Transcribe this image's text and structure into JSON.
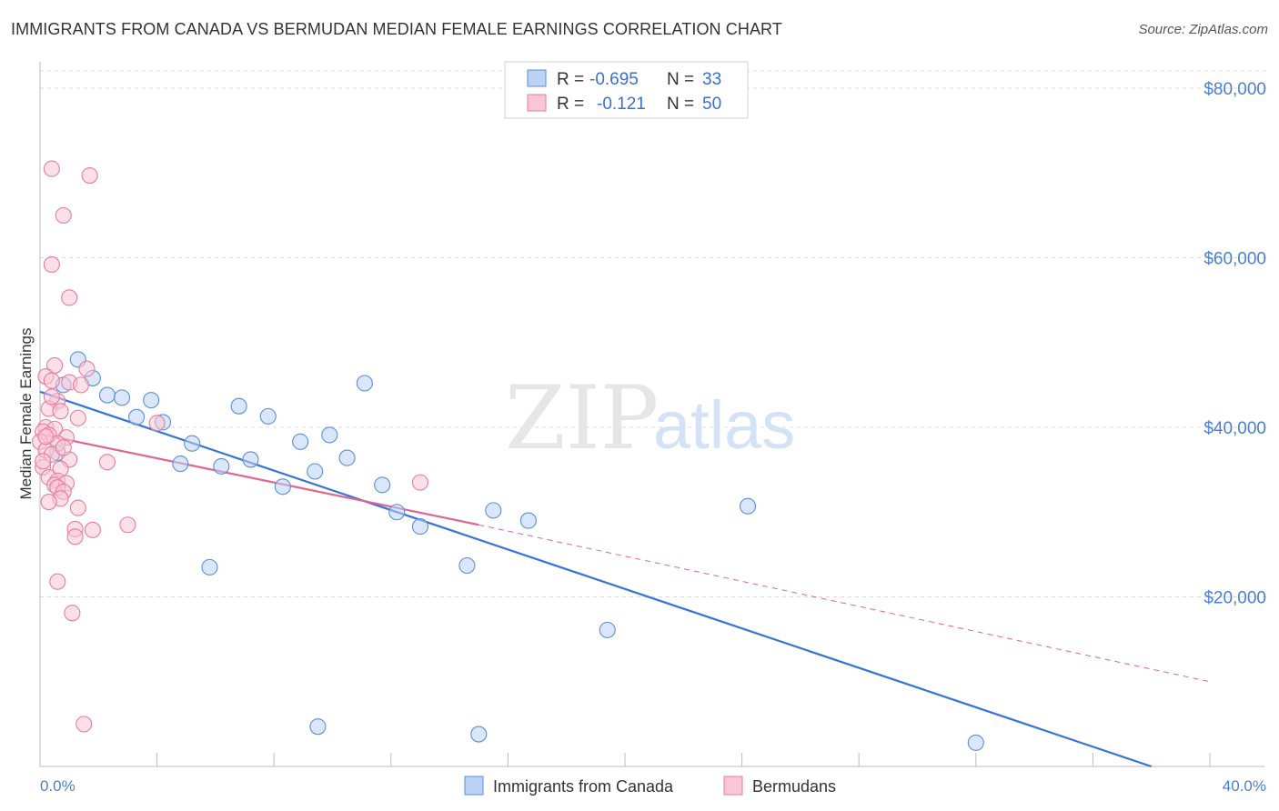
{
  "title": "IMMIGRANTS FROM CANADA VS BERMUDAN MEDIAN FEMALE EARNINGS CORRELATION CHART",
  "source": "Source: ZipAtlas.com",
  "watermark": {
    "zip": "ZIP",
    "atlas": "atlas"
  },
  "colors": {
    "blue": "#5b8fd8",
    "blue_fill": "#bcd2f4",
    "blue_line": "#3573d6",
    "pink": "#e87c9e",
    "pink_fill": "#f8c6d6",
    "pink_line": "#e06590",
    "grid": "#d8d8d8",
    "tick_text": "#4a7fd0"
  },
  "legend": {
    "rows": [
      {
        "r_label": "R =",
        "r_value": "-0.695",
        "n_label": "N =",
        "n_value": "33"
      },
      {
        "r_label": "R =",
        "r_value": "-0.121",
        "n_label": "N =",
        "n_value": "50"
      }
    ]
  },
  "chart_data": {
    "type": "scatter",
    "title": "IMMIGRANTS FROM CANADA VS BERMUDAN MEDIAN FEMALE EARNINGS CORRELATION CHART",
    "xlabel": "",
    "ylabel": "Median Female Earnings",
    "xlim": [
      0,
      40
    ],
    "ylim": [
      0,
      80000
    ],
    "x_tick_labels": [
      "0.0%",
      "40.0%"
    ],
    "y_ticks": [
      20000,
      40000,
      60000,
      80000
    ],
    "y_tick_labels": [
      "$20,000",
      "$40,000",
      "$60,000",
      "$80,000"
    ],
    "grid": true,
    "legend_position": "top-center",
    "series": [
      {
        "name": "Immigrants from Canada",
        "color": "blue",
        "points": [
          [
            0.6,
            37000
          ],
          [
            0.8,
            45000
          ],
          [
            1.3,
            48000
          ],
          [
            1.8,
            45800
          ],
          [
            2.3,
            43800
          ],
          [
            2.8,
            43500
          ],
          [
            3.3,
            41200
          ],
          [
            3.8,
            43200
          ],
          [
            4.2,
            40600
          ],
          [
            4.8,
            35700
          ],
          [
            5.2,
            38100
          ],
          [
            5.8,
            23500
          ],
          [
            6.2,
            35400
          ],
          [
            6.8,
            42500
          ],
          [
            7.2,
            36200
          ],
          [
            7.8,
            41300
          ],
          [
            8.3,
            33000
          ],
          [
            8.9,
            38300
          ],
          [
            9.4,
            34800
          ],
          [
            9.9,
            39100
          ],
          [
            10.5,
            36400
          ],
          [
            11.1,
            45200
          ],
          [
            11.7,
            33200
          ],
          [
            12.2,
            30000
          ],
          [
            13.0,
            28300
          ],
          [
            14.6,
            23700
          ],
          [
            15.5,
            30200
          ],
          [
            16.7,
            29000
          ],
          [
            19.4,
            16100
          ],
          [
            24.2,
            30700
          ],
          [
            9.5,
            4700
          ],
          [
            15.0,
            3800
          ],
          [
            32.0,
            2800
          ]
        ],
        "trend": {
          "x": [
            0,
            38
          ],
          "y": [
            44200,
            0
          ],
          "style": "solid"
        }
      },
      {
        "name": "Bermudans",
        "color": "pink",
        "points": [
          [
            0.4,
            70500
          ],
          [
            1.7,
            69700
          ],
          [
            0.8,
            65000
          ],
          [
            0.4,
            59200
          ],
          [
            1.0,
            55300
          ],
          [
            0.5,
            47300
          ],
          [
            1.6,
            46900
          ],
          [
            0.2,
            46000
          ],
          [
            0.4,
            45500
          ],
          [
            1.0,
            45300
          ],
          [
            1.4,
            45000
          ],
          [
            0.6,
            43100
          ],
          [
            0.3,
            42200
          ],
          [
            0.7,
            41900
          ],
          [
            1.3,
            41100
          ],
          [
            0.2,
            40000
          ],
          [
            0.5,
            39800
          ],
          [
            0.1,
            39500
          ],
          [
            0.3,
            39100
          ],
          [
            0.9,
            38800
          ],
          [
            0.0,
            38300
          ],
          [
            0.6,
            38100
          ],
          [
            0.2,
            37300
          ],
          [
            0.4,
            36800
          ],
          [
            1.0,
            36200
          ],
          [
            2.3,
            35900
          ],
          [
            0.1,
            35300
          ],
          [
            0.7,
            35100
          ],
          [
            0.3,
            34100
          ],
          [
            0.6,
            33700
          ],
          [
            0.5,
            33200
          ],
          [
            0.9,
            33400
          ],
          [
            0.6,
            32900
          ],
          [
            0.8,
            32400
          ],
          [
            0.7,
            31600
          ],
          [
            0.3,
            31200
          ],
          [
            1.3,
            30500
          ],
          [
            3.0,
            28500
          ],
          [
            1.2,
            28000
          ],
          [
            1.8,
            27900
          ],
          [
            1.2,
            27100
          ],
          [
            0.6,
            21800
          ],
          [
            1.1,
            18100
          ],
          [
            1.5,
            5000
          ],
          [
            4.0,
            40500
          ],
          [
            13.0,
            33500
          ],
          [
            0.2,
            38900
          ],
          [
            0.8,
            37600
          ],
          [
            0.4,
            43600
          ],
          [
            0.1,
            36000
          ]
        ],
        "trend": {
          "x": [
            0,
            15
          ],
          "y": [
            39200,
            28500
          ],
          "style": "solid",
          "extension": {
            "x": [
              15,
              40
            ],
            "y": [
              28500,
              10000
            ],
            "style": "dashed"
          }
        }
      }
    ]
  }
}
